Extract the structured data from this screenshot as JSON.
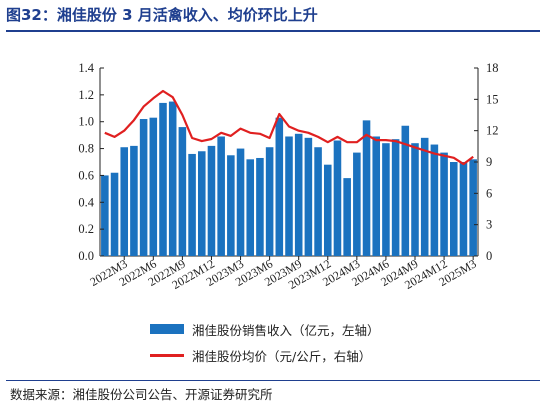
{
  "header": {
    "title": "图32：湘佳股份 3 月活禽收入、均价环比上升"
  },
  "footer": {
    "source": "数据来源：湘佳股份公司公告、开源证券研究所"
  },
  "colors": {
    "bar": "#1b72bf",
    "line": "#e02020",
    "title": "#1f3f8f"
  },
  "chart_data": {
    "type": "bar+line",
    "categories": [
      "2022M1",
      "2022M2",
      "2022M3",
      "2022M4",
      "2022M5",
      "2022M6",
      "2022M7",
      "2022M8",
      "2022M9",
      "2022M10",
      "2022M11",
      "2022M12",
      "2023M1",
      "2023M2",
      "2023M3",
      "2023M4",
      "2023M5",
      "2023M6",
      "2023M7",
      "2023M8",
      "2023M9",
      "2023M10",
      "2023M11",
      "2023M12",
      "2024M1",
      "2024M2",
      "2024M3",
      "2024M4",
      "2024M5",
      "2024M6",
      "2024M7",
      "2024M8",
      "2024M9",
      "2024M10",
      "2024M11",
      "2024M12",
      "2025M1",
      "2025M2",
      "2025M3"
    ],
    "x_tick_labels": [
      "2022M3",
      "2022M6",
      "2022M9",
      "2022M12",
      "2023M3",
      "2023M6",
      "2023M9",
      "2023M12",
      "2024M3",
      "2024M6",
      "2024M9",
      "2024M12",
      "2025M3"
    ],
    "series": [
      {
        "name": "湘佳股份销售收入（亿元，左轴）",
        "type": "bar",
        "axis": "left",
        "values": [
          0.6,
          0.62,
          0.81,
          0.82,
          1.02,
          1.03,
          1.14,
          1.15,
          0.96,
          0.76,
          0.78,
          0.82,
          0.89,
          0.75,
          0.8,
          0.72,
          0.73,
          0.81,
          1.03,
          0.89,
          0.91,
          0.88,
          0.81,
          0.68,
          0.86,
          0.58,
          0.77,
          1.01,
          0.89,
          0.84,
          0.87,
          0.97,
          0.84,
          0.88,
          0.83,
          0.77,
          0.7,
          0.7,
          0.72
        ]
      },
      {
        "name": "湘佳股份均价（元/公斤，右轴）",
        "type": "line",
        "axis": "right",
        "values": [
          11.8,
          11.4,
          12.0,
          13.0,
          14.3,
          15.1,
          15.8,
          15.2,
          13.5,
          11.3,
          11.0,
          11.2,
          11.8,
          11.5,
          12.2,
          11.8,
          11.7,
          11.3,
          13.6,
          12.4,
          12.0,
          11.8,
          11.4,
          10.9,
          11.4,
          10.9,
          10.9,
          11.6,
          11.1,
          11.1,
          11.0,
          10.7,
          10.4,
          10.1,
          9.8,
          9.6,
          9.4,
          8.8,
          9.5
        ]
      }
    ],
    "y_left": {
      "min": 0,
      "max": 1.4,
      "ticks": [
        "0.0",
        "0.2",
        "0.4",
        "0.6",
        "0.8",
        "1.0",
        "1.2",
        "1.4"
      ]
    },
    "y_right": {
      "min": 0,
      "max": 18,
      "ticks": [
        "0",
        "3",
        "6",
        "9",
        "12",
        "15",
        "18"
      ]
    },
    "legend": [
      "湘佳股份销售收入（亿元，左轴）",
      "湘佳股份均价（元/公斤，右轴）"
    ],
    "legend_position": "bottom",
    "grid": false
  }
}
